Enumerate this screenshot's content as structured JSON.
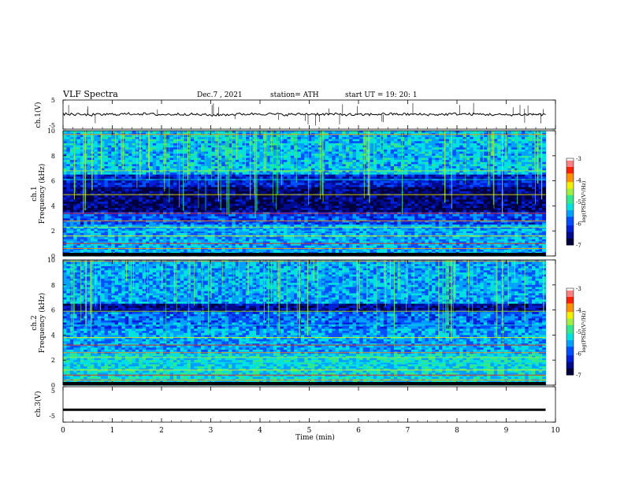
{
  "header": {
    "title": "VLF  Spectra",
    "date": "Dec.7  , 2021",
    "station": "station= ATH",
    "start_ut": "start  UT  =    19: 20: 1"
  },
  "colors": {
    "colormap": [
      "#00003c",
      "#000a8c",
      "#0020d8",
      "#0050ff",
      "#00a0ff",
      "#00e0e0",
      "#30e890",
      "#a0f040",
      "#f0f000",
      "#ff9000",
      "#ff2000",
      "#ff8080",
      "#ffffff"
    ],
    "trace": "#000000"
  },
  "chart_data": [
    {
      "type": "line",
      "ylabel": "ch.1(V)",
      "ylim": [
        -5,
        5
      ],
      "y_ticks": [
        "5",
        "-5"
      ],
      "x": [
        0,
        0.5,
        1,
        1.5,
        2,
        2.5,
        3,
        3.5,
        4,
        4.5,
        5,
        5.5,
        6,
        6.5,
        7,
        7.5,
        8,
        8.5,
        9,
        9.5,
        9.8
      ],
      "y": [
        0.2,
        -0.1,
        0.1,
        0.3,
        0.0,
        0.2,
        -0.2,
        0.1,
        0.3,
        0.0,
        0.2,
        0.1,
        -0.1,
        0.2,
        0.1,
        0.0,
        0.2,
        0.1,
        -0.1,
        0.1,
        0.0
      ]
    },
    {
      "type": "heatmap",
      "ylabel": "ch.1\nFrequency  (kHz)",
      "ylim": [
        0,
        10
      ],
      "y_ticks": [
        "0",
        "2",
        "4",
        "6",
        "8",
        "10"
      ],
      "colorbar_label": "log(PSD)(V²/Hz)",
      "colorbar_range": [
        -7,
        -3
      ],
      "colorbar_ticks": [
        "-3",
        "-4",
        "-5",
        "-6",
        "-7"
      ]
    },
    {
      "type": "heatmap",
      "ylabel": "ch.2\nFrequency  (kHz)",
      "ylim": [
        0,
        10
      ],
      "y_ticks": [
        "0",
        "2",
        "4",
        "6",
        "8",
        "10"
      ],
      "colorbar_label": "log(PSD)(V²/Hz)",
      "colorbar_range": [
        -7,
        -3
      ],
      "colorbar_ticks": [
        "-3",
        "-4",
        "-5",
        "-6",
        "-7"
      ]
    },
    {
      "type": "line",
      "ylabel": "ch.3(V)",
      "ylim": [
        -5,
        5
      ],
      "y_ticks": [
        "5",
        "-5"
      ],
      "x": [
        0,
        9.8
      ],
      "y": [
        -1.5,
        -1.5
      ]
    }
  ],
  "x_axis": {
    "label": "Time  (min)",
    "xlim": [
      0,
      10
    ],
    "ticks": [
      "0",
      "1",
      "2",
      "3",
      "4",
      "5",
      "6",
      "7",
      "8",
      "9",
      "10"
    ]
  }
}
